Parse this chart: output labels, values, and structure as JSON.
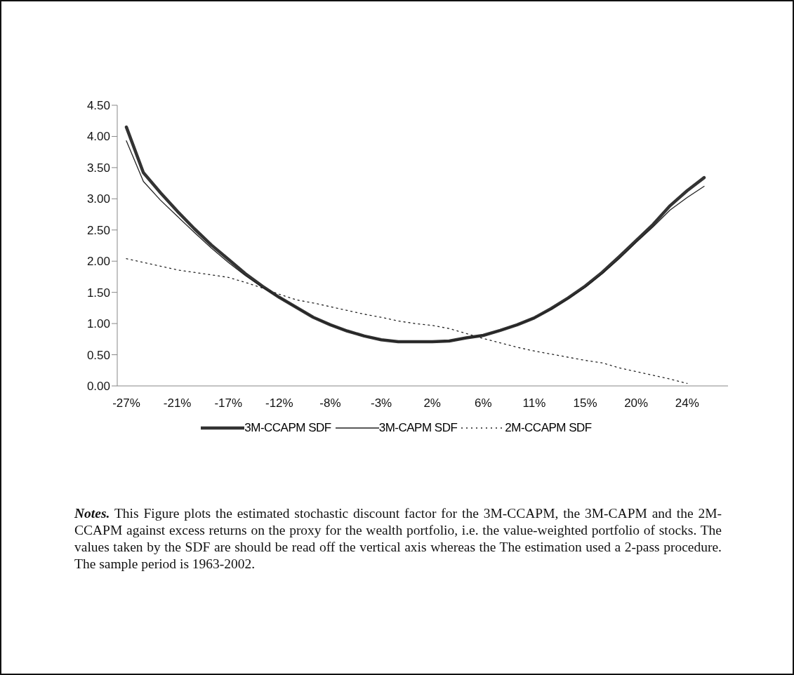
{
  "chart_data": {
    "type": "line",
    "categories": [
      "-27%",
      null,
      null,
      "-21%",
      null,
      null,
      "-17%",
      null,
      null,
      "-12%",
      null,
      null,
      "-8%",
      null,
      null,
      "-3%",
      null,
      null,
      "2%",
      null,
      null,
      "6%",
      null,
      null,
      "11%",
      null,
      null,
      "15%",
      null,
      null,
      "20%",
      null,
      null,
      "24%",
      null
    ],
    "series": [
      {
        "name": "3M-CCAPM SDF",
        "color": "#333333",
        "line_style": "solid",
        "values": [
          4.15,
          3.42,
          3.1,
          2.8,
          2.52,
          2.26,
          2.03,
          1.8,
          1.6,
          1.42,
          1.26,
          1.1,
          0.98,
          0.88,
          0.8,
          0.74,
          0.71,
          0.71,
          0.71,
          0.72,
          0.77,
          0.81,
          0.89,
          0.98,
          1.09,
          1.24,
          1.41,
          1.6,
          1.82,
          2.07,
          2.33,
          2.59,
          2.89,
          3.13,
          3.34
        ]
      },
      {
        "name": "3M-CAPM SDF",
        "color": "#222222",
        "line_style": "solid",
        "values": [
          3.93,
          3.28,
          2.98,
          2.72,
          2.46,
          2.21,
          1.98,
          1.77,
          1.58,
          1.42,
          1.26,
          1.1,
          0.98,
          0.88,
          0.8,
          0.74,
          0.71,
          0.71,
          0.71,
          0.72,
          0.77,
          0.81,
          0.89,
          0.98,
          1.09,
          1.23,
          1.4,
          1.58,
          1.8,
          2.04,
          2.3,
          2.55,
          2.82,
          3.02,
          3.2
        ]
      },
      {
        "name": "2M-CCAPM SDF",
        "color": "#222222",
        "line_style": "dotted",
        "values": [
          2.04,
          1.98,
          1.92,
          1.86,
          1.82,
          1.78,
          1.74,
          1.66,
          1.57,
          1.47,
          1.38,
          1.33,
          1.27,
          1.21,
          1.15,
          1.1,
          1.04,
          1.0,
          0.97,
          0.92,
          0.84,
          0.76,
          0.69,
          0.62,
          0.56,
          0.51,
          0.46,
          0.41,
          0.37,
          0.29,
          0.23,
          0.17,
          0.11,
          0.04,
          null
        ]
      }
    ],
    "ylim": [
      0,
      4.5
    ],
    "yticks": [
      {
        "value": 0,
        "label": "0.00"
      },
      {
        "value": 0.5,
        "label": "0.50"
      },
      {
        "value": 1,
        "label": "1.00"
      },
      {
        "value": 1.5,
        "label": "1.50"
      },
      {
        "value": 2,
        "label": "2.00"
      },
      {
        "value": 2.5,
        "label": "2.50"
      },
      {
        "value": 3,
        "label": "3.00"
      },
      {
        "value": 3.5,
        "label": "3.50"
      },
      {
        "value": 4,
        "label": "4.00"
      },
      {
        "value": 4.5,
        "label": "4.50"
      }
    ],
    "grid": false,
    "legend": "bottom",
    "marker": "none",
    "annotations": [
      "Notes. This Figure plots the estimated stochastic discount factor for the 3M-CCAPM, the 3M-CAPM and the 2M-CCAPM against excess returns on the proxy for the wealth portfolio, i.e. the value-weighted portfolio of stocks. The values taken by the SDF are should be read off the vertical axis whereas the The estimation used a 2-pass procedure. The sample period is 1963-2002."
    ]
  }
}
